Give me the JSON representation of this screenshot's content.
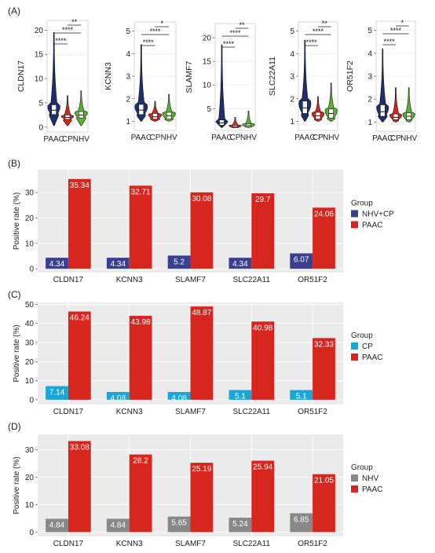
{
  "panels": {
    "A": {
      "label": "(A)"
    },
    "B": {
      "label": "(B)"
    },
    "C": {
      "label": "(C)"
    },
    "D": {
      "label": "(D)"
    }
  },
  "colors": {
    "PAAC_violin": "#1f2f6e",
    "CP_violin": "#d4241e",
    "NHV_violin": "#5ab22e",
    "bar_PAAC": "#d7261e",
    "bar_NHVCP": "#3a3f8f",
    "bar_CP": "#1aa7d6",
    "bar_NHV": "#888888",
    "panel_bg": "#ebebeb"
  },
  "chart_data": [
    {
      "type": "violin",
      "panel": "A",
      "gene": "CLDN17",
      "ylabel": "CLDN17",
      "categories": [
        "PAAC",
        "CP",
        "NHV"
      ],
      "ylim": [
        -1,
        22
      ],
      "yticks": [
        0,
        5,
        10,
        15,
        20
      ],
      "medians": [
        3.5,
        2.0,
        2.5
      ],
      "q1": [
        2.6,
        1.6,
        1.9
      ],
      "q3": [
        4.6,
        2.5,
        3.2
      ],
      "mins": [
        0.3,
        0.3,
        0.3
      ],
      "maxs": [
        19.5,
        6.5,
        7.5
      ],
      "significance": [
        {
          "pair": [
            "PAAC",
            "CP"
          ],
          "label": "****"
        },
        {
          "pair": [
            "PAAC",
            "NHV"
          ],
          "label": "****"
        },
        {
          "pair": [
            "CP",
            "NHV"
          ],
          "label": "**"
        }
      ]
    },
    {
      "type": "violin",
      "panel": "A",
      "gene": "KCNN3",
      "ylabel": "KCNN3",
      "categories": [
        "PAAC",
        "CP",
        "NHV"
      ],
      "ylim": [
        0.6,
        5.4
      ],
      "yticks": [
        1,
        2,
        3,
        4,
        5
      ],
      "medians": [
        1.5,
        1.2,
        1.25
      ],
      "q1": [
        1.3,
        1.1,
        1.1
      ],
      "q3": [
        1.75,
        1.35,
        1.4
      ],
      "mins": [
        1.0,
        1.0,
        1.0
      ],
      "maxs": [
        4.4,
        1.9,
        2.2
      ],
      "significance": [
        {
          "pair": [
            "PAAC",
            "CP"
          ],
          "label": "****"
        },
        {
          "pair": [
            "PAAC",
            "NHV"
          ],
          "label": "****"
        },
        {
          "pair": [
            "CP",
            "NHV"
          ],
          "label": "*"
        }
      ]
    },
    {
      "type": "violin",
      "panel": "A",
      "gene": "SLAMF7",
      "ylabel": "SLAMF7",
      "categories": [
        "PAAC",
        "CP",
        "NHV"
      ],
      "ylim": [
        0.4,
        23
      ],
      "yticks": [
        5,
        10,
        15,
        20
      ],
      "medians": [
        2.0,
        1.2,
        1.4
      ],
      "q1": [
        1.5,
        1.0,
        1.1
      ],
      "q3": [
        2.6,
        1.5,
        1.8
      ],
      "mins": [
        1.0,
        1.0,
        1.0
      ],
      "maxs": [
        18.5,
        3.2,
        4.5
      ],
      "significance": [
        {
          "pair": [
            "PAAC",
            "CP"
          ],
          "label": "****"
        },
        {
          "pair": [
            "PAAC",
            "NHV"
          ],
          "label": "****"
        },
        {
          "pair": [
            "CP",
            "NHV"
          ],
          "label": "**"
        }
      ]
    },
    {
      "type": "violin",
      "panel": "A",
      "gene": "SLC22A11",
      "ylabel": "SLC22A11",
      "categories": [
        "PAAC",
        "CP",
        "NHV"
      ],
      "ylim": [
        0.6,
        5.4
      ],
      "yticks": [
        1,
        2,
        3,
        4,
        5
      ],
      "medians": [
        1.6,
        1.25,
        1.35
      ],
      "q1": [
        1.35,
        1.1,
        1.15
      ],
      "q3": [
        1.9,
        1.4,
        1.55
      ],
      "mins": [
        1.0,
        1.0,
        1.0
      ],
      "maxs": [
        4.6,
        2.1,
        2.7
      ],
      "significance": [
        {
          "pair": [
            "PAAC",
            "CP"
          ],
          "label": "****"
        },
        {
          "pair": [
            "PAAC",
            "NHV"
          ],
          "label": "****"
        },
        {
          "pair": [
            "CP",
            "NHV"
          ],
          "label": "**"
        }
      ]
    },
    {
      "type": "violin",
      "panel": "A",
      "gene": "OR51F2",
      "ylabel": "OR51F2",
      "categories": [
        "PAAC",
        "CP",
        "NHV"
      ],
      "ylim": [
        0.6,
        5.4
      ],
      "yticks": [
        1,
        2,
        3,
        4,
        5
      ],
      "medians": [
        1.45,
        1.2,
        1.25
      ],
      "q1": [
        1.25,
        1.1,
        1.1
      ],
      "q3": [
        1.75,
        1.35,
        1.4
      ],
      "mins": [
        1.0,
        1.0,
        1.0
      ],
      "maxs": [
        4.2,
        2.5,
        2.5
      ],
      "significance": [
        {
          "pair": [
            "PAAC",
            "CP"
          ],
          "label": "****"
        },
        {
          "pair": [
            "PAAC",
            "NHV"
          ],
          "label": "****"
        },
        {
          "pair": [
            "CP",
            "NHV"
          ],
          "label": "*"
        }
      ]
    },
    {
      "type": "bar",
      "panel": "B",
      "categories": [
        "CLDN17",
        "KCNN3",
        "SLAMF7",
        "SLC22A11",
        "OR51F2"
      ],
      "ylabel": "Positive rate (%)",
      "ylim": [
        -1.5,
        39
      ],
      "yticks": [
        0,
        10,
        20,
        30
      ],
      "legend_title": "Group",
      "legend_position": "right",
      "series": [
        {
          "name": "NHV+CP",
          "color_key": "bar_NHVCP",
          "values": [
            4.34,
            4.34,
            5.2,
            4.34,
            6.07
          ],
          "labels": [
            "4.34",
            "4.34",
            "5.2",
            "4.34",
            "6.07"
          ]
        },
        {
          "name": "PAAC",
          "color_key": "bar_PAAC",
          "values": [
            35.34,
            32.71,
            30.08,
            29.7,
            24.06
          ],
          "labels": [
            "35.34",
            "32.71",
            "30.08",
            "29.7",
            "24.06"
          ]
        }
      ]
    },
    {
      "type": "bar",
      "panel": "C",
      "categories": [
        "CLDN17",
        "KCNN3",
        "SLAMF7",
        "SLC22A11",
        "OR51F2"
      ],
      "ylabel": "Positive rate (%)",
      "ylim": [
        -2.5,
        51
      ],
      "yticks": [
        0,
        10,
        20,
        30,
        40,
        50
      ],
      "legend_title": "Group",
      "legend_position": "right",
      "series": [
        {
          "name": "CP",
          "color_key": "bar_CP",
          "values": [
            7.14,
            4.08,
            4.08,
            5.1,
            5.1
          ],
          "labels": [
            "7.14",
            "4.08",
            "4.08",
            "5.1",
            "5.1"
          ]
        },
        {
          "name": "PAAC",
          "color_key": "bar_PAAC",
          "values": [
            46.24,
            43.98,
            48.87,
            40.98,
            32.33
          ],
          "labels": [
            "46.24",
            "43.98",
            "48.87",
            "40.98",
            "32.33"
          ]
        }
      ]
    },
    {
      "type": "bar",
      "panel": "D",
      "categories": [
        "CLDN17",
        "KCNN3",
        "SLAMF7",
        "SLC22A11",
        "OR51F2"
      ],
      "ylabel": "Positive rate (%)",
      "ylim": [
        -1.6,
        35.5
      ],
      "yticks": [
        0,
        10,
        20,
        30
      ],
      "legend_title": "Group",
      "legend_position": "right",
      "series": [
        {
          "name": "NHV",
          "color_key": "bar_NHV",
          "values": [
            4.84,
            4.84,
            5.65,
            5.24,
            6.85
          ],
          "labels": [
            "4.84",
            "4.84",
            "5.65",
            "5.24",
            "6.85"
          ]
        },
        {
          "name": "PAAC",
          "color_key": "bar_PAAC",
          "values": [
            33.08,
            28.2,
            25.19,
            25.94,
            21.05
          ],
          "labels": [
            "33.08",
            "28.2",
            "25.19",
            "25.94",
            "21.05"
          ]
        }
      ]
    }
  ]
}
